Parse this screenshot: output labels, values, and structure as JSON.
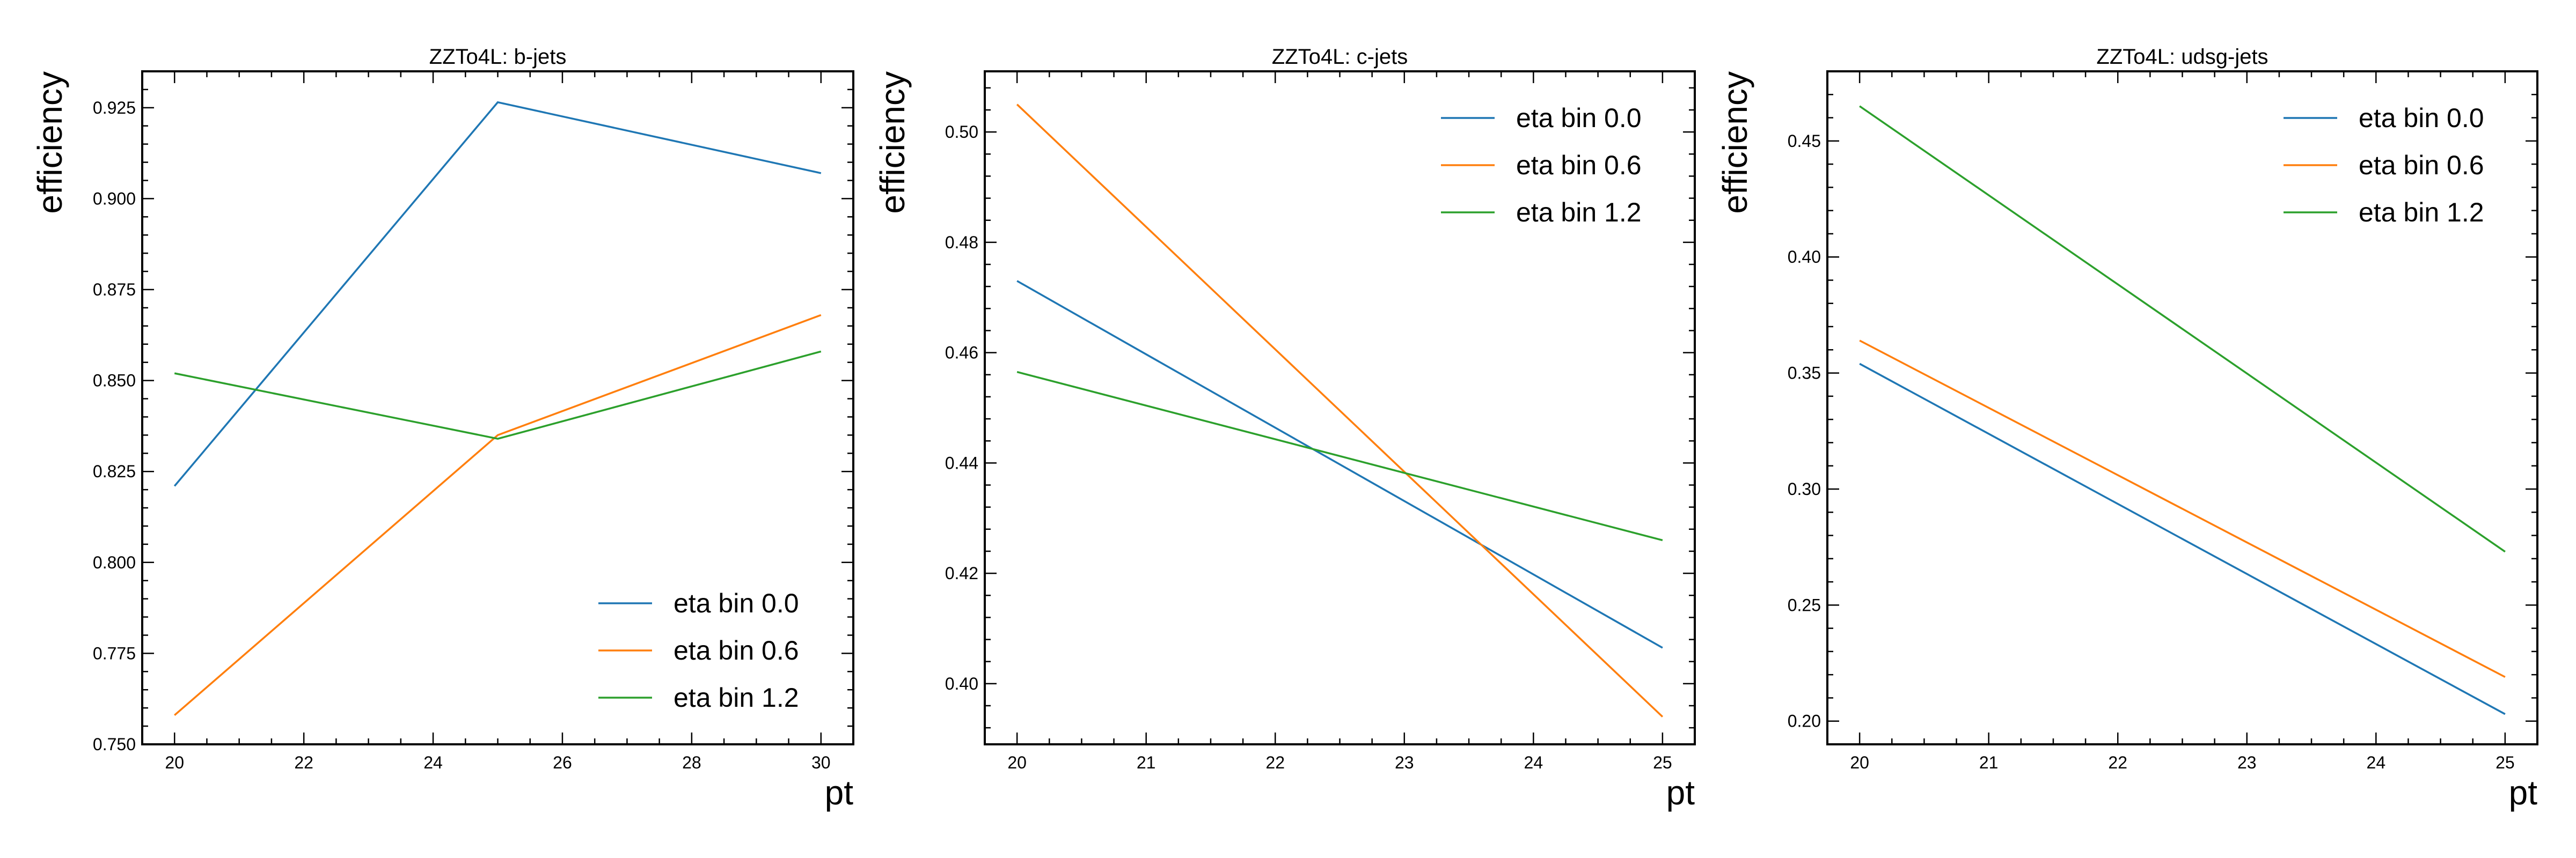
{
  "chart_data": [
    {
      "type": "line",
      "title": "ZZTo4L: b-jets",
      "xlabel": "pt",
      "ylabel": "efficiency",
      "x": [
        20,
        25,
        30
      ],
      "xlim": [
        19.5,
        30.5
      ],
      "ylim": [
        0.75,
        0.935
      ],
      "xticks": [
        "20",
        "22",
        "24",
        "26",
        "28",
        "30"
      ],
      "yticks": [
        "0.750",
        "0.775",
        "0.800",
        "0.825",
        "0.850",
        "0.875",
        "0.900",
        "0.925"
      ],
      "legend_position": "lower-right",
      "series": [
        {
          "name": "eta bin 0.0",
          "color": "#1f77b4",
          "values": [
            0.821,
            0.9265,
            0.907
          ]
        },
        {
          "name": "eta bin 0.6",
          "color": "#ff7f0e",
          "values": [
            0.758,
            0.835,
            0.868
          ]
        },
        {
          "name": "eta bin 1.2",
          "color": "#2ca02c",
          "values": [
            0.852,
            0.834,
            0.858
          ]
        }
      ]
    },
    {
      "type": "line",
      "title": "ZZTo4L: c-jets",
      "xlabel": "pt",
      "ylabel": "efficiency",
      "x": [
        20,
        25
      ],
      "xlim": [
        19.75,
        25.25
      ],
      "ylim": [
        0.389,
        0.511
      ],
      "xticks": [
        "20",
        "21",
        "22",
        "23",
        "24",
        "25"
      ],
      "yticks": [
        "0.40",
        "0.42",
        "0.44",
        "0.46",
        "0.48",
        "0.50"
      ],
      "legend_position": "upper-right",
      "series": [
        {
          "name": "eta bin 0.0",
          "color": "#1f77b4",
          "values": [
            0.473,
            0.4065
          ]
        },
        {
          "name": "eta bin 0.6",
          "color": "#ff7f0e",
          "values": [
            0.505,
            0.394
          ]
        },
        {
          "name": "eta bin 1.2",
          "color": "#2ca02c",
          "values": [
            0.4565,
            0.426
          ]
        }
      ]
    },
    {
      "type": "line",
      "title": "ZZTo4L: udsg-jets",
      "xlabel": "pt",
      "ylabel": "efficiency",
      "x": [
        20,
        25
      ],
      "xlim": [
        19.75,
        25.25
      ],
      "ylim": [
        0.19,
        0.48
      ],
      "xticks": [
        "20",
        "21",
        "22",
        "23",
        "24",
        "25"
      ],
      "yticks": [
        "0.20",
        "0.25",
        "0.30",
        "0.35",
        "0.40",
        "0.45"
      ],
      "legend_position": "upper-right",
      "series": [
        {
          "name": "eta bin 0.0",
          "color": "#1f77b4",
          "values": [
            0.354,
            0.203
          ]
        },
        {
          "name": "eta bin 0.6",
          "color": "#ff7f0e",
          "values": [
            0.364,
            0.219
          ]
        },
        {
          "name": "eta bin 1.2",
          "color": "#2ca02c",
          "values": [
            0.465,
            0.273
          ]
        }
      ]
    }
  ]
}
